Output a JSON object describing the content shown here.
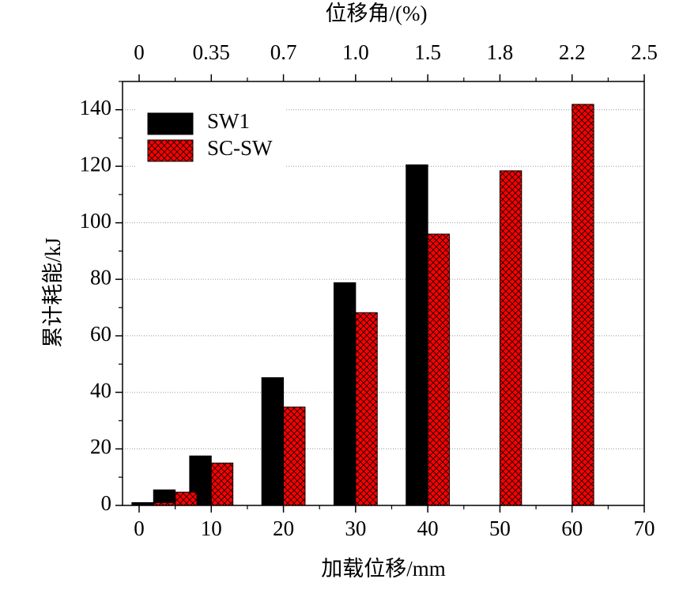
{
  "chart_data": {
    "type": "bar",
    "x_label": "加载位移/mm",
    "y_label": "累计耗能/kJ",
    "x2_label": "位移角/(%)",
    "x": [
      2,
      5,
      10,
      20,
      30,
      40,
      50,
      60
    ],
    "series": [
      {
        "name": "SW1",
        "color": "#000000",
        "values": [
          1,
          5.5,
          17.5,
          45.2,
          78.8,
          120.5,
          null,
          null
        ]
      },
      {
        "name": "SC-SW",
        "color": "#ff0000",
        "hatch": "crosshatch",
        "values": [
          1,
          4.7,
          15,
          34.8,
          68.2,
          96,
          118.4,
          141.9
        ]
      }
    ],
    "xlim": [
      -2.3,
      70
    ],
    "xticks": [
      0,
      10,
      20,
      30,
      40,
      50,
      60,
      70
    ],
    "x2ticklabels": [
      "0",
      "0.35",
      "0.7",
      "1.0",
      "1.5",
      "1.8",
      "2.2",
      "2.5"
    ],
    "ylim": [
      0,
      150
    ],
    "yticks": [
      0,
      20,
      40,
      60,
      80,
      100,
      120,
      140
    ],
    "grid": true,
    "legend": "upper left"
  }
}
